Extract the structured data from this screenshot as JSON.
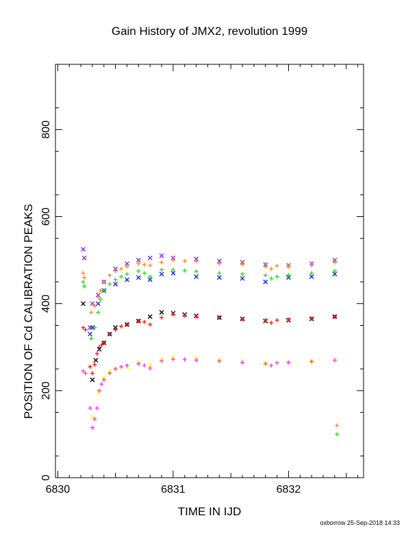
{
  "chart_data": {
    "type": "scatter",
    "title": "Gain History of JMX2, revolution 1999",
    "xlabel": "TIME IN IJD",
    "ylabel": "POSITION OF Cd CALIBRATION PEAKS",
    "credit": "oxborrow 25-Sep-2018 14:33",
    "xlim": [
      6829.98,
      6832.65
    ],
    "ylim": [
      0,
      950
    ],
    "x_ticks": [
      6830,
      6831,
      6832
    ],
    "x_tick_labels": [
      "6830",
      "6831",
      "6832"
    ],
    "y_ticks": [
      0,
      200,
      400,
      600,
      800
    ],
    "y_tick_labels": [
      "0",
      "200",
      "400",
      "600",
      "800"
    ],
    "grid": false,
    "legend": "none",
    "colors": {
      "purple": "#8a2be2",
      "orange": "#ff8c1a",
      "blue": "#1f1fe6",
      "green": "#22e01f",
      "black": "#000000",
      "red": "#ff1a1a",
      "yellow": "#ffff33",
      "magenta": "#ff33ff"
    },
    "series": [
      {
        "color": "purple",
        "marker": "x",
        "x": [
          6830.22,
          6830.23,
          6830.28,
          6830.3,
          6830.35,
          6830.4,
          6830.5,
          6830.6,
          6830.7,
          6830.8,
          6830.9,
          6831.0,
          6831.2,
          6831.4,
          6831.6,
          6831.8,
          6832.0,
          6832.2,
          6832.4
        ],
        "y": [
          525,
          505,
          345,
          400,
          420,
          450,
          480,
          492,
          500,
          505,
          510,
          505,
          503,
          498,
          495,
          490,
          488,
          492,
          500
        ]
      },
      {
        "color": "orange",
        "marker": "+",
        "x": [
          6830.22,
          6830.23,
          6830.29,
          6830.32,
          6830.35,
          6830.37,
          6830.4,
          6830.45,
          6830.5,
          6830.55,
          6830.6,
          6830.7,
          6830.75,
          6830.8,
          6830.9,
          6831.0,
          6831.1,
          6831.2,
          6831.4,
          6831.6,
          6831.8,
          6831.85,
          6831.9,
          6832.0,
          6832.2,
          6832.4,
          6832.42
        ],
        "y": [
          470,
          460,
          380,
          395,
          415,
          430,
          450,
          465,
          475,
          480,
          485,
          492,
          490,
          488,
          495,
          500,
          498,
          497,
          492,
          490,
          485,
          480,
          487,
          485,
          488,
          495,
          120
        ]
      },
      {
        "color": "blue",
        "marker": "x",
        "x": [
          6830.28,
          6830.3,
          6830.35,
          6830.4,
          6830.5,
          6830.6,
          6830.7,
          6830.8,
          6830.9,
          6831.0,
          6831.2,
          6831.4,
          6831.6,
          6831.8,
          6832.0,
          6832.2,
          6832.4
        ],
        "y": [
          330,
          345,
          400,
          430,
          445,
          455,
          460,
          455,
          468,
          470,
          462,
          460,
          458,
          450,
          460,
          462,
          468
        ]
      },
      {
        "color": "green",
        "marker": "+",
        "x": [
          6830.22,
          6830.23,
          6830.29,
          6830.32,
          6830.35,
          6830.37,
          6830.4,
          6830.45,
          6830.5,
          6830.55,
          6830.6,
          6830.7,
          6830.75,
          6830.8,
          6830.9,
          6831.0,
          6831.1,
          6831.2,
          6831.4,
          6831.6,
          6831.8,
          6831.85,
          6831.9,
          6832.0,
          6832.2,
          6832.4,
          6832.42
        ],
        "y": [
          450,
          440,
          320,
          345,
          380,
          410,
          430,
          445,
          455,
          462,
          468,
          475,
          470,
          462,
          478,
          478,
          476,
          474,
          470,
          468,
          465,
          458,
          462,
          466,
          470,
          475,
          100
        ]
      },
      {
        "color": "black",
        "marker": "x",
        "x": [
          6830.22,
          6830.3,
          6830.33,
          6830.36,
          6830.4,
          6830.45,
          6830.5,
          6830.6,
          6830.7,
          6830.8,
          6830.9,
          6831.0,
          6831.1,
          6831.2,
          6831.4,
          6831.6,
          6831.8,
          6832.0,
          6832.2,
          6832.4
        ],
        "y": [
          400,
          225,
          270,
          295,
          310,
          330,
          345,
          352,
          360,
          370,
          380,
          378,
          375,
          372,
          368,
          365,
          360,
          362,
          365,
          370
        ]
      },
      {
        "color": "red",
        "marker": "+",
        "x": [
          6830.22,
          6830.24,
          6830.28,
          6830.3,
          6830.32,
          6830.34,
          6830.36,
          6830.38,
          6830.4,
          6830.45,
          6830.5,
          6830.55,
          6830.6,
          6830.7,
          6830.75,
          6830.8,
          6830.9,
          6831.0,
          6831.1,
          6831.2,
          6831.4,
          6831.6,
          6831.8,
          6831.85,
          6831.9,
          6832.0,
          6832.2,
          6832.4
        ],
        "y": [
          345,
          340,
          255,
          240,
          260,
          285,
          300,
          305,
          310,
          330,
          340,
          348,
          352,
          360,
          358,
          352,
          368,
          375,
          372,
          370,
          368,
          364,
          362,
          356,
          362,
          364,
          366,
          370
        ]
      },
      {
        "color": "yellow",
        "marker": "x",
        "x": [
          6830.3,
          6830.35,
          6830.4,
          6830.45,
          6830.5,
          6830.6,
          6830.7,
          6830.8,
          6830.9,
          6831.0,
          6831.2,
          6831.4,
          6831.6,
          6831.8,
          6832.0,
          6832.2,
          6832.4
        ],
        "y": [
          140,
          195,
          230,
          245,
          250,
          255,
          265,
          260,
          272,
          278,
          275,
          272,
          268,
          262,
          265,
          268,
          272
        ]
      },
      {
        "color": "magenta",
        "marker": "+",
        "x": [
          6830.22,
          6830.24,
          6830.28,
          6830.3,
          6830.32,
          6830.34,
          6830.36,
          6830.38,
          6830.4,
          6830.45,
          6830.5,
          6830.55,
          6830.6,
          6830.7,
          6830.75,
          6830.8,
          6830.9,
          6831.0,
          6831.1,
          6831.2,
          6831.4,
          6831.6,
          6831.8,
          6831.85,
          6831.9,
          6832.0,
          6832.2,
          6832.4
        ],
        "y": [
          245,
          240,
          160,
          115,
          135,
          160,
          200,
          215,
          225,
          240,
          250,
          255,
          258,
          262,
          258,
          252,
          268,
          272,
          272,
          270,
          268,
          265,
          262,
          258,
          264,
          265,
          267,
          270
        ]
      }
    ]
  }
}
